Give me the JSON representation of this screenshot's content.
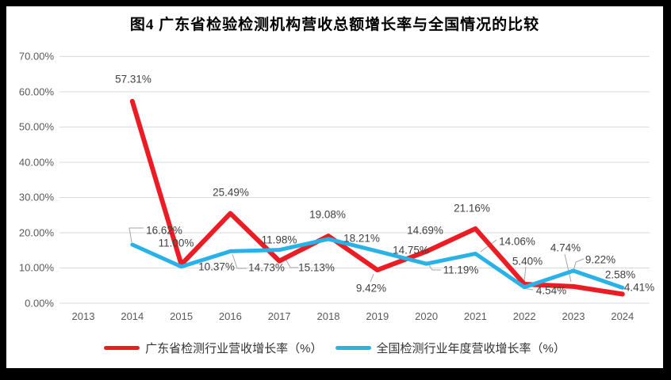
{
  "chart_data": {
    "type": "line",
    "title": "图4  广东省检验检测机构营收总额增长率与全国情况的比较",
    "categories": [
      "2013",
      "2014",
      "2015",
      "2016",
      "2017",
      "2018",
      "2019",
      "2020",
      "2021",
      "2022",
      "2023",
      "2024"
    ],
    "series": [
      {
        "name": "广东省检测行业营收增长率（%）",
        "color": "#EC1C24",
        "values": [
          null,
          57.31,
          11.0,
          25.49,
          11.98,
          19.08,
          9.42,
          14.69,
          21.16,
          5.4,
          4.74,
          2.58
        ]
      },
      {
        "name": "全国检测行业年度营收增长率（%）",
        "color": "#29B2E8",
        "values": [
          null,
          16.62,
          10.37,
          14.73,
          15.13,
          18.21,
          14.75,
          11.19,
          14.06,
          4.54,
          9.22,
          4.41
        ]
      }
    ],
    "xlabel": "",
    "ylabel": "",
    "ylim": [
      0,
      70
    ],
    "ytick_step": 10,
    "ytick_format": "0.00%",
    "data_label_format": "0.00%",
    "grid": "horizontal",
    "legend_position": "bottom"
  },
  "colors": {
    "frame": "#000000",
    "background": "#FFFFFF",
    "gridline": "#D9D9D9",
    "axis_text": "#595959",
    "data_label": "#404040",
    "leader_line": "#A6A6A6"
  }
}
